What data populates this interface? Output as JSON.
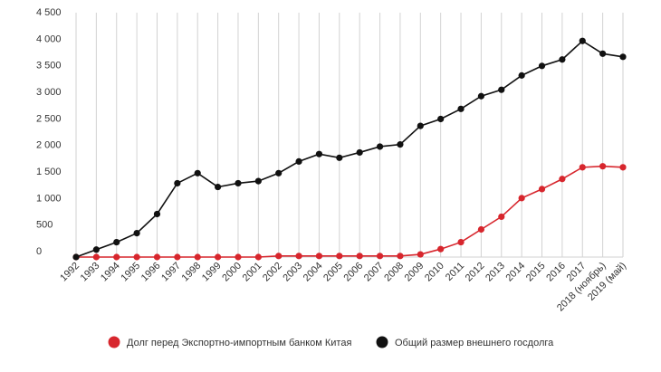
{
  "chart_data": {
    "type": "line",
    "title": "",
    "xlabel": "",
    "ylabel": "",
    "categories": [
      "1992",
      "1993",
      "1994",
      "1995",
      "1996",
      "1997",
      "1998",
      "1999",
      "2000",
      "2001",
      "2002",
      "2003",
      "2004",
      "2005",
      "2006",
      "2007",
      "2008",
      "2009",
      "2010",
      "2011",
      "2012",
      "2013",
      "2014",
      "2015",
      "2016",
      "2017",
      "2018 (ноябрь)",
      "2019 (май)"
    ],
    "ylim": [
      0,
      4500
    ],
    "y_ticks": [
      0,
      500,
      1000,
      1500,
      2000,
      2500,
      3000,
      3500,
      4000,
      4500
    ],
    "y_tick_labels": [
      "0",
      "500",
      "1 000",
      "1 500",
      "2 000",
      "2 500",
      "3 000",
      "3 500",
      "4 000",
      "4 500"
    ],
    "grid": "vertical",
    "legend_position": "bottom",
    "series": [
      {
        "name": "Долг перед Экспортно-импортным банком Китая",
        "color": "#d7262d",
        "values": [
          0,
          0,
          0,
          0,
          0,
          0,
          0,
          0,
          0,
          0,
          20,
          20,
          20,
          20,
          20,
          20,
          20,
          50,
          150,
          280,
          520,
          760,
          1110,
          1280,
          1470,
          1690,
          1710,
          1690
        ]
      },
      {
        "name": "Общий размер внешнего госдолга",
        "color": "#111111",
        "values": [
          0,
          140,
          280,
          450,
          810,
          1390,
          1580,
          1320,
          1390,
          1430,
          1580,
          1800,
          1940,
          1870,
          1970,
          2080,
          2120,
          2470,
          2600,
          2790,
          3030,
          3150,
          3420,
          3600,
          3720,
          4070,
          3830,
          3770
        ]
      }
    ]
  }
}
